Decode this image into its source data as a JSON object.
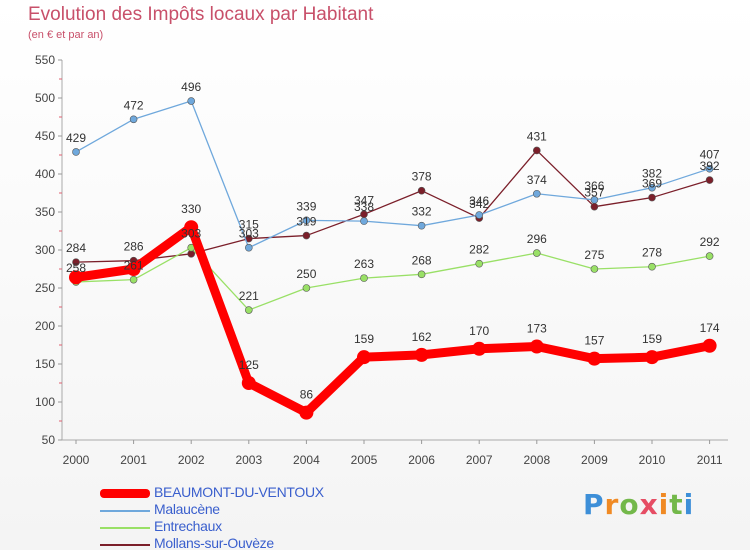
{
  "title": "Evolution des Impôts locaux par Habitant",
  "subtitle": "(en € et par an)",
  "chart_data": {
    "type": "line",
    "title": "Evolution des Impôts locaux par Habitant",
    "subtitle": "(en € et par an)",
    "xlabel": "",
    "ylabel": "",
    "ylim": [
      50,
      550
    ],
    "yticks": [
      "50",
      "100",
      "150",
      "200",
      "250",
      "300",
      "350",
      "400",
      "450",
      "500",
      "550"
    ],
    "grid": false,
    "categories": [
      "2000",
      "2001",
      "2002",
      "2003",
      "2004",
      "2005",
      "2006",
      "2007",
      "2008",
      "2009",
      "2010",
      "2011"
    ],
    "series": [
      {
        "name": "BEAUMONT-DU-VENTOUX",
        "color": "#ff0000",
        "values": [
          264,
          275,
          330,
          125,
          86,
          159,
          162,
          170,
          173,
          157,
          159,
          174
        ],
        "labels": [
          "",
          "",
          "330",
          "125",
          "86",
          "159",
          "162",
          "170",
          "173",
          "157",
          "159",
          "174"
        ]
      },
      {
        "name": "Malaucène",
        "color": "#6fa8dc",
        "values": [
          429,
          472,
          496,
          303,
          339,
          338,
          332,
          346,
          374,
          366,
          382,
          407
        ],
        "labels": [
          "429",
          "472",
          "496",
          "303",
          "339",
          "338",
          "332",
          "346",
          "374",
          "366",
          "382",
          "407"
        ]
      },
      {
        "name": "Entrechaux",
        "color": "#99e066",
        "values": [
          258,
          261,
          303,
          221,
          250,
          263,
          268,
          282,
          296,
          275,
          278,
          292
        ],
        "labels": [
          "258",
          "261",
          "303",
          "221",
          "250",
          "263",
          "268",
          "282",
          "296",
          "275",
          "278",
          "292"
        ]
      },
      {
        "name": "Mollans-sur-Ouvèze",
        "color": "#7b1f2a",
        "values": [
          284,
          286,
          295,
          315,
          319,
          347,
          378,
          342,
          431,
          357,
          369,
          392
        ],
        "labels": [
          "284",
          "286",
          "",
          "315",
          "319",
          "347",
          "378",
          "342",
          "431",
          "357",
          "369",
          "392"
        ]
      }
    ],
    "legend": "bottom-left"
  },
  "logo_text": "Proxiti",
  "colors": {
    "title": "#c8506a",
    "legend_text": "#3a5fcd",
    "axis": "#999999",
    "label": "#333333"
  }
}
